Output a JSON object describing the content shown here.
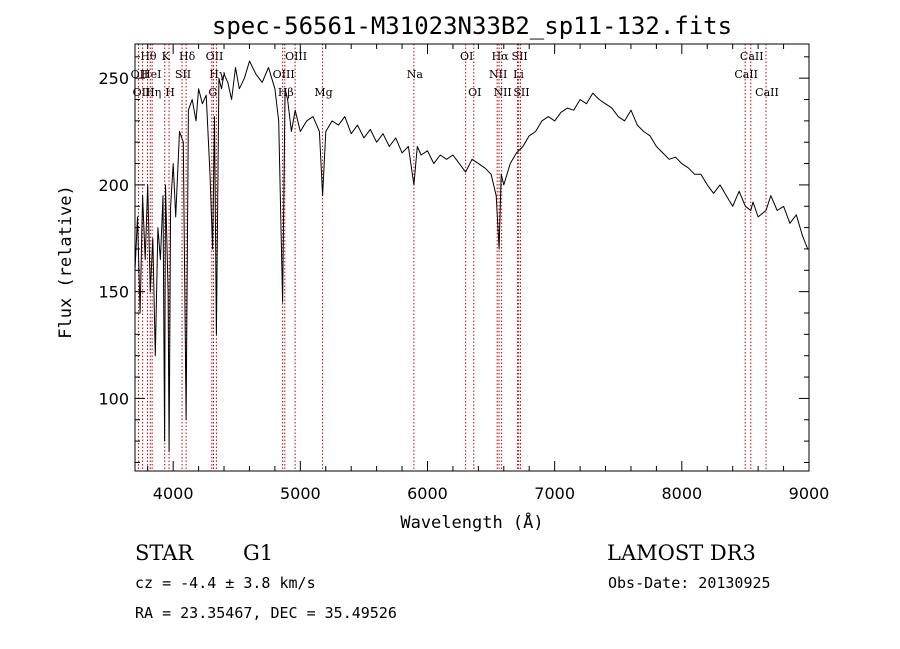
{
  "chart_data": {
    "type": "line",
    "title": "spec-56561-M31023N33B2_sp11-132.fits",
    "xlabel": "Wavelength (Å)",
    "ylabel": "Flux (relative)",
    "xlim": [
      3700,
      9000
    ],
    "ylim": [
      66,
      266
    ],
    "xticks": [
      4000,
      5000,
      6000,
      7000,
      8000,
      9000
    ],
    "yticks": [
      100,
      150,
      200,
      250
    ],
    "x_minor_step": 200,
    "y_minor_step": 10,
    "series": [
      {
        "color": "#000000",
        "x": [
          3700,
          3720,
          3740,
          3760,
          3780,
          3800,
          3820,
          3840,
          3860,
          3880,
          3900,
          3920,
          3933,
          3940,
          3960,
          3968,
          3980,
          4000,
          4020,
          4050,
          4080,
          4102,
          4120,
          4150,
          4180,
          4200,
          4230,
          4260,
          4290,
          4310,
          4325,
          4340,
          4360,
          4380,
          4400,
          4430,
          4460,
          4490,
          4520,
          4560,
          4600,
          4650,
          4700,
          4750,
          4800,
          4830,
          4861,
          4880,
          4900,
          4930,
          4960,
          5000,
          5050,
          5100,
          5150,
          5175,
          5200,
          5250,
          5300,
          5350,
          5400,
          5450,
          5500,
          5550,
          5600,
          5650,
          5700,
          5750,
          5800,
          5850,
          5893,
          5920,
          5950,
          6000,
          6050,
          6100,
          6150,
          6200,
          6250,
          6300,
          6350,
          6400,
          6450,
          6500,
          6540,
          6563,
          6580,
          6600,
          6650,
          6700,
          6750,
          6800,
          6850,
          6900,
          6950,
          7000,
          7050,
          7100,
          7150,
          7200,
          7250,
          7300,
          7350,
          7400,
          7450,
          7500,
          7550,
          7600,
          7650,
          7700,
          7750,
          7800,
          7850,
          7900,
          7950,
          8000,
          8050,
          8100,
          8150,
          8200,
          8250,
          8300,
          8350,
          8400,
          8450,
          8500,
          8542,
          8560,
          8600,
          8662,
          8700,
          8750,
          8800,
          8850,
          8900,
          8950,
          8990
        ],
        "y": [
          160,
          185,
          140,
          195,
          165,
          200,
          150,
          175,
          120,
          180,
          165,
          195,
          80,
          200,
          150,
          75,
          190,
          210,
          185,
          225,
          220,
          90,
          235,
          240,
          230,
          245,
          238,
          242,
          205,
          170,
          232,
          130,
          250,
          245,
          252,
          248,
          240,
          255,
          245,
          250,
          258,
          252,
          248,
          255,
          245,
          230,
          145,
          245,
          240,
          225,
          235,
          225,
          230,
          232,
          225,
          195,
          225,
          230,
          228,
          232,
          224,
          228,
          222,
          226,
          220,
          224,
          218,
          222,
          215,
          218,
          200,
          218,
          214,
          216,
          210,
          214,
          212,
          214,
          210,
          206,
          212,
          210,
          208,
          205,
          195,
          170,
          205,
          200,
          210,
          215,
          218,
          223,
          225,
          230,
          232,
          230,
          234,
          236,
          235,
          240,
          238,
          243,
          240,
          238,
          236,
          232,
          230,
          235,
          228,
          225,
          223,
          218,
          215,
          212,
          213,
          210,
          208,
          205,
          205,
          200,
          196,
          200,
          195,
          190,
          197,
          190,
          188,
          192,
          185,
          188,
          195,
          188,
          190,
          182,
          186,
          176,
          170
        ]
      }
    ],
    "line_markers": [
      {
        "label": "Hθ",
        "x": 3798,
        "row": 0
      },
      {
        "label": "K",
        "x": 3934,
        "row": 0
      },
      {
        "label": "Hδ",
        "x": 4102,
        "row": 0
      },
      {
        "label": "OII",
        "x": 3727,
        "row": 1
      },
      {
        "label": "HeI",
        "x": 3820,
        "row": 1
      },
      {
        "label": "SII",
        "x": 4070,
        "row": 1
      },
      {
        "label": "OIII",
        "x": 3760,
        "row": 2
      },
      {
        "label": "Hη",
        "x": 3835,
        "row": 2
      },
      {
        "label": "H",
        "x": 3968,
        "row": 2
      },
      {
        "label": "OII",
        "x": 4317,
        "row": 0
      },
      {
        "label": "Hγ",
        "x": 4340,
        "row": 1
      },
      {
        "label": "G",
        "x": 4304,
        "row": 2
      },
      {
        "label": "OIII",
        "x": 4959,
        "row": 0
      },
      {
        "label": "OIII",
        "x": 4861,
        "row": 1
      },
      {
        "label": "Hβ",
        "x": 4878,
        "row": 2
      },
      {
        "label": "Mg",
        "x": 5175,
        "row": 2
      },
      {
        "label": "Na",
        "x": 5893,
        "row": 1
      },
      {
        "label": "OI",
        "x": 6300,
        "row": 0
      },
      {
        "label": "OI",
        "x": 6364,
        "row": 2
      },
      {
        "label": "Hα",
        "x": 6563,
        "row": 0
      },
      {
        "label": "SII",
        "x": 6717,
        "row": 0
      },
      {
        "label": "NII",
        "x": 6548,
        "row": 1
      },
      {
        "label": "Li",
        "x": 6708,
        "row": 1
      },
      {
        "label": "NII",
        "x": 6583,
        "row": 2
      },
      {
        "label": "SII",
        "x": 6731,
        "row": 2
      },
      {
        "label": "CaII",
        "x": 8542,
        "row": 0
      },
      {
        "label": "CaII",
        "x": 8498,
        "row": 1
      },
      {
        "label": "CaII",
        "x": 8662,
        "row": 2
      }
    ],
    "marker_color": "#cc0000"
  },
  "info": {
    "class": "STAR",
    "subclass": "G1",
    "survey": "LAMOST DR3",
    "cz": "cz = -4.4 ± 3.8 km/s",
    "obs_date": "Obs-Date: 20130925",
    "radec": "RA =  23.35467, DEC =  35.49526"
  }
}
